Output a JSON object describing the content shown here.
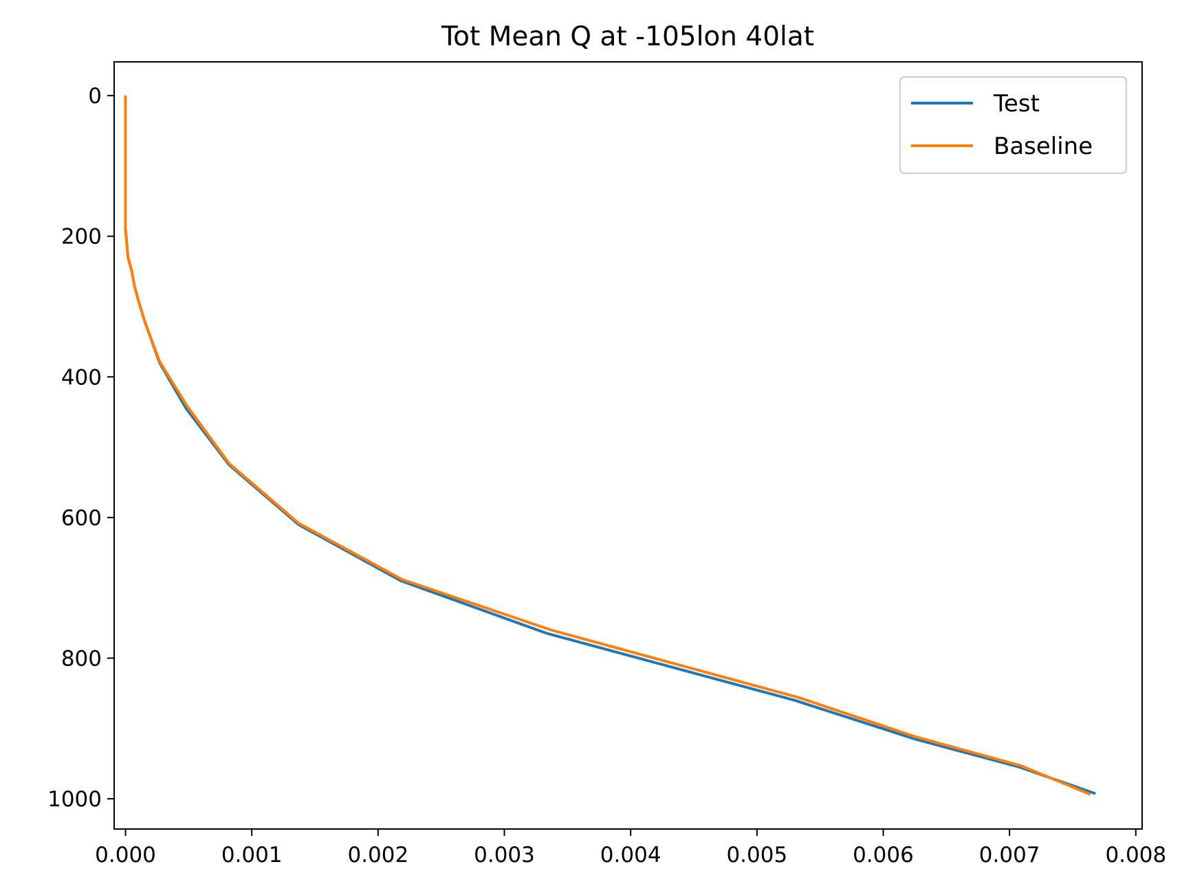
{
  "chart_data": {
    "type": "line",
    "title": "Tot Mean Q at -105lon 40lat",
    "xlabel": "",
    "ylabel": "",
    "xlim": [
      -9e-05,
      0.00805
    ],
    "ylim": [
      1043,
      -48
    ],
    "y_inverted": true,
    "grid": false,
    "legend_position": "top-right",
    "x_ticks": [
      0.0,
      0.001,
      0.002,
      0.003,
      0.004,
      0.005,
      0.006,
      0.007,
      0.008
    ],
    "x_tick_labels": [
      "0.000",
      "0.001",
      "0.002",
      "0.003",
      "0.004",
      "0.005",
      "0.006",
      "0.007",
      "0.008"
    ],
    "y_ticks": [
      0,
      200,
      400,
      600,
      800,
      1000
    ],
    "y_tick_labels": [
      "0",
      "200",
      "400",
      "600",
      "800",
      "1000"
    ],
    "series": [
      {
        "name": "Test",
        "color": "#1f77b4",
        "x": [
          0.0,
          0.0,
          0.0,
          0.0,
          0.0,
          0.0,
          1e-05,
          2e-05,
          5e-05,
          7e-05,
          0.0001,
          0.00015,
          0.00027,
          0.00048,
          0.00082,
          0.00137,
          0.00218,
          0.00334,
          0.0053,
          0.00625,
          0.00708,
          0.00767
        ],
        "y": [
          2,
          40,
          80,
          120,
          160,
          190,
          210,
          230,
          250,
          270,
          290,
          320,
          380,
          445,
          525,
          610,
          690,
          765,
          860,
          915,
          955,
          992
        ]
      },
      {
        "name": "Baseline",
        "color": "#ff7f0e",
        "x": [
          0.0,
          0.0,
          0.0,
          0.0,
          0.0,
          0.0,
          1e-05,
          2e-05,
          5e-05,
          7e-05,
          0.0001,
          0.00015,
          0.00027,
          0.00049,
          0.00082,
          0.00137,
          0.00219,
          0.00337,
          0.00533,
          0.00626,
          0.00709,
          0.00763
        ],
        "y": [
          2,
          40,
          80,
          120,
          160,
          190,
          210,
          230,
          250,
          270,
          290,
          320,
          378,
          442,
          523,
          608,
          688,
          760,
          856,
          912,
          953,
          993
        ]
      }
    ]
  }
}
